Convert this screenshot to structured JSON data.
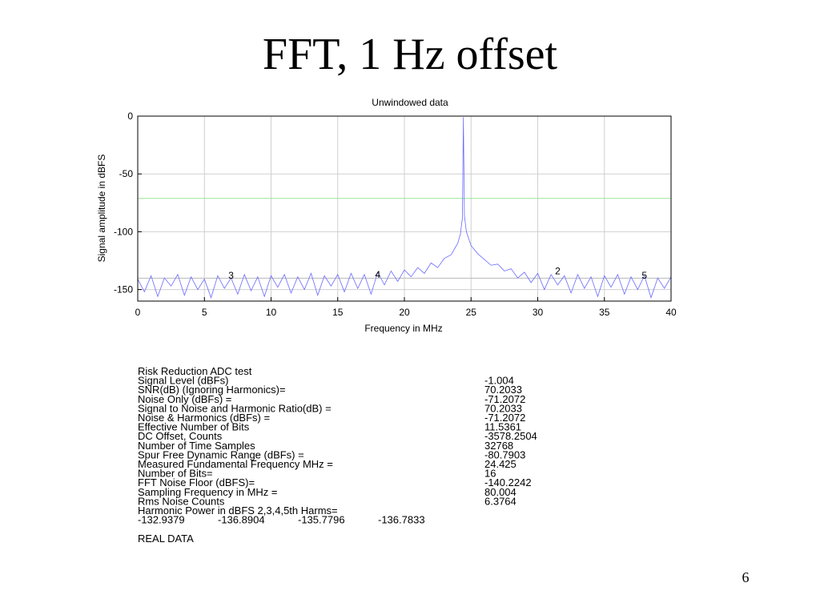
{
  "title": "FFT, 1 Hz offset",
  "page_number": "6",
  "chart_data": {
    "type": "line",
    "title": "Unwindowed data",
    "x_label": "Frequency in MHz",
    "y_label": "Signal amplitude in dBFS",
    "xlim": [
      0,
      40
    ],
    "xticks": [
      0,
      5,
      10,
      15,
      20,
      25,
      30,
      35,
      40
    ],
    "ylim": [
      -160,
      0
    ],
    "yticks": [
      0,
      -50,
      -100,
      -150
    ],
    "grid": true,
    "x": [
      0,
      0.5,
      1,
      1.5,
      2,
      2.5,
      3,
      3.5,
      4,
      4.5,
      5,
      5.5,
      6,
      6.5,
      7,
      7.5,
      8,
      8.5,
      9,
      9.5,
      10,
      10.5,
      11,
      11.5,
      12,
      12.5,
      13,
      13.5,
      14,
      14.5,
      15,
      15.5,
      16,
      16.5,
      17,
      17.5,
      18,
      18.5,
      19,
      19.5,
      20,
      20.5,
      21,
      21.5,
      22,
      22.5,
      23,
      23.5,
      24,
      24.2,
      24.35,
      24.425,
      24.5,
      24.65,
      25,
      25.5,
      26,
      26.5,
      27,
      27.5,
      28,
      28.5,
      29,
      29.5,
      30,
      30.5,
      31,
      31.5,
      32,
      32.5,
      33,
      33.5,
      34,
      34.5,
      35,
      35.5,
      36,
      36.5,
      37,
      37.5,
      38,
      38.5,
      39,
      39.5,
      40
    ],
    "series": [
      {
        "color": "#6a6aff",
        "values": [
          -141,
          -152,
          -138,
          -156,
          -140,
          -147,
          -137,
          -155,
          -139,
          -150,
          -141,
          -157,
          -138,
          -149,
          -140,
          -154,
          -137,
          -151,
          -139,
          -156,
          -138,
          -148,
          -137,
          -153,
          -139,
          -150,
          -136,
          -155,
          -138,
          -147,
          -137,
          -152,
          -136,
          -149,
          -137,
          -154,
          -135,
          -146,
          -134,
          -143,
          -133,
          -139,
          -131,
          -136,
          -127,
          -131,
          -123,
          -120,
          -110,
          -102,
          -88,
          -1,
          -86,
          -100,
          -112,
          -119,
          -124,
          -129,
          -128,
          -134,
          -132,
          -140,
          -135,
          -144,
          -136,
          -150,
          -137,
          -146,
          -138,
          -153,
          -137,
          -149,
          -139,
          -156,
          -138,
          -148,
          -137,
          -154,
          -139,
          -150,
          -138,
          -157,
          -140,
          -149,
          -139
        ]
      }
    ],
    "reference_lines": [
      {
        "value": -71.2,
        "color": "#99e699"
      },
      {
        "value": -140.2,
        "color": "#b8b8b8"
      }
    ],
    "annotations": [
      {
        "text": "3",
        "x": 7,
        "y": -138
      },
      {
        "text": "4",
        "x": 18,
        "y": -137
      },
      {
        "text": "2",
        "x": 31.5,
        "y": -134
      },
      {
        "text": "5",
        "x": 38,
        "y": -138
      }
    ]
  },
  "stats": {
    "heading": "Risk Reduction ADC test",
    "rows": [
      [
        "Signal Level (dBFs)",
        "-1.004"
      ],
      [
        "SNR(dB) (Ignoring Harmonics)=",
        "70.2033"
      ],
      [
        "Noise Only (dBFs) =",
        "-71.2072"
      ],
      [
        "Signal to Noise and Harmonic Ratio(dB) =",
        "70.2033"
      ],
      [
        "Noise & Harmonics (dBFs) =",
        "-71.2072"
      ],
      [
        "Effective Number of Bits",
        "11.5361"
      ],
      [
        "DC Offset, Counts",
        "-3578.2504"
      ],
      [
        "Number of Time Samples",
        "32768"
      ],
      [
        "Spur Free Dynamic Range (dBFs) =",
        "-80.7903"
      ],
      [
        "Measured Fundamental Frequency MHz =",
        "24.425"
      ],
      [
        "Number of Bits=",
        "16"
      ],
      [
        "FFT Noise Floor (dBFS)=",
        "-140.2242"
      ],
      [
        "Sampling Frequency in MHz =",
        "80.004"
      ],
      [
        "Rms Noise Counts",
        "6.3764"
      ]
    ],
    "harmonics_label": "Harmonic Power in dBFS 2,3,4,5th Harms=",
    "harmonics": [
      "-132.9379",
      "-136.8904",
      "-135.7796",
      "-136.7833"
    ],
    "footer": "REAL DATA"
  }
}
